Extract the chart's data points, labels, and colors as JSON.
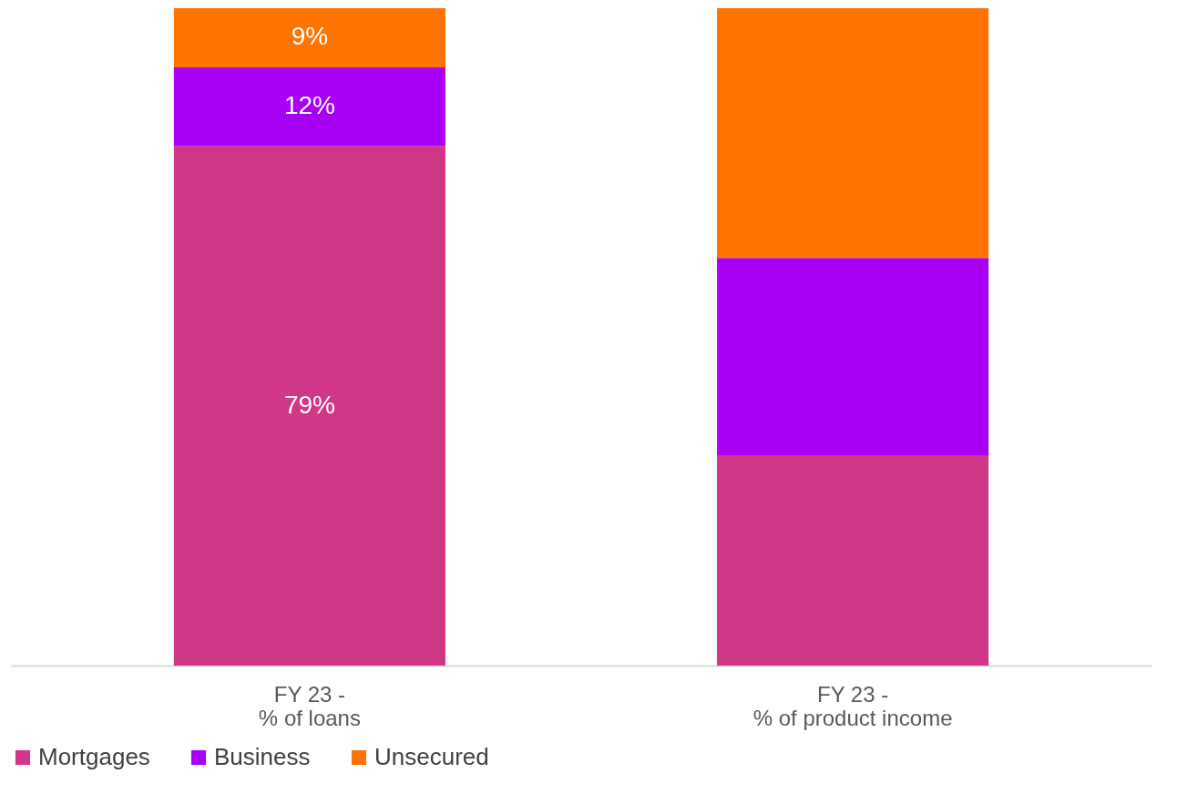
{
  "chart_data": {
    "type": "bar",
    "stacked": true,
    "categories": [
      "FY 23 -\n% of loans",
      "FY 23 -\n% of product income"
    ],
    "series": [
      {
        "name": "Mortgages",
        "color": "#d13787",
        "values": [
          79,
          32
        ],
        "value_labels": [
          "79%",
          null
        ]
      },
      {
        "name": "Business",
        "color": "#a800f5",
        "values": [
          12,
          30
        ],
        "value_labels": [
          "12%",
          null
        ]
      },
      {
        "name": "Unsecured",
        "color": "#ff7300",
        "values": [
          9,
          38
        ],
        "value_labels": [
          "9%",
          null
        ]
      }
    ],
    "legend": "bottom",
    "grid": false,
    "tick_labels": "x"
  }
}
